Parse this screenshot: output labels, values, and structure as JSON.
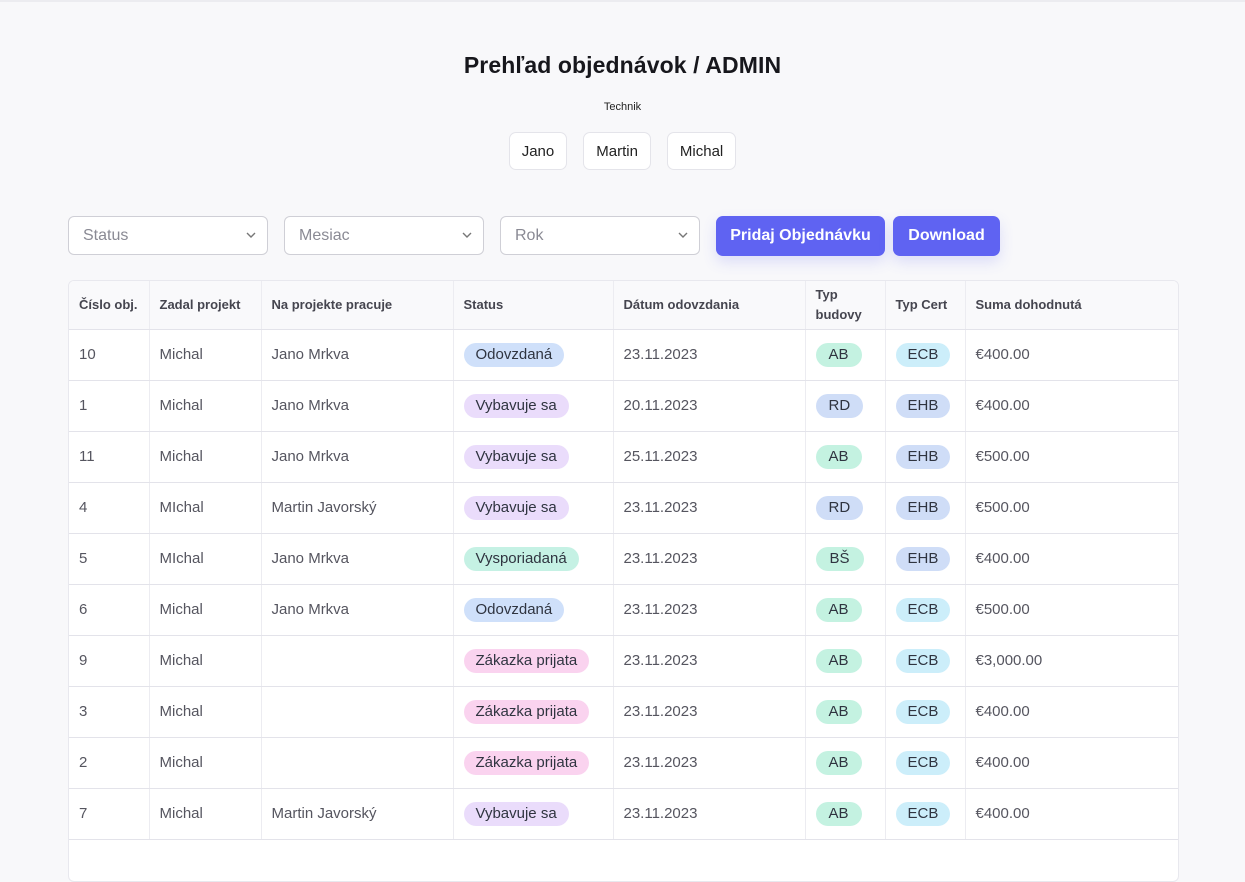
{
  "page": {
    "title": "Prehľad objednávok / ADMIN",
    "technician_label": "Technik"
  },
  "technicians": [
    {
      "label": "Jano"
    },
    {
      "label": "Martin"
    },
    {
      "label": "Michal"
    }
  ],
  "filters": {
    "status": {
      "placeholder": "Status"
    },
    "month": {
      "placeholder": "Mesiac"
    },
    "year": {
      "placeholder": "Rok"
    }
  },
  "actions": {
    "add_order": "Pridaj Objednávku",
    "download": "Download"
  },
  "colors": {
    "accent": "#5f63f2",
    "pill_odovzdana": "#cfe0fa",
    "pill_vybavuje": "#eadcfb",
    "pill_vysporiadana": "#c5f1e4",
    "pill_zakazka": "#fad3ef",
    "pill_ab": "#c4f2e1",
    "pill_rd": "#cfddf7",
    "pill_ecb": "#cceefa"
  },
  "table": {
    "headers": {
      "order_no": "Číslo obj.",
      "entered_by": "Zadal projekt",
      "worker": "Na projekte pracuje",
      "status": "Status",
      "delivery_date": "Dátum odovzdania",
      "building_type": "Typ budovy",
      "cert_type": "Typ Cert",
      "amount": "Suma dohodnutá"
    },
    "rows": [
      {
        "order_no": "10",
        "entered_by": "Michal",
        "worker": "Jano Mrkva",
        "status": "Odovzdaná",
        "status_class": "odovzdana",
        "delivery_date": "23.11.2023",
        "building_type": "AB",
        "building_class": "ab",
        "cert_type": "ECB",
        "cert_class": "ecb",
        "amount": "€400.00"
      },
      {
        "order_no": "1",
        "entered_by": "Michal",
        "worker": "Jano Mrkva",
        "status": "Vybavuje sa",
        "status_class": "vybavuje",
        "delivery_date": "20.11.2023",
        "building_type": "RD",
        "building_class": "rd",
        "cert_type": "EHB",
        "cert_class": "ehb",
        "amount": "€400.00"
      },
      {
        "order_no": "11",
        "entered_by": "Michal",
        "worker": "Jano Mrkva",
        "status": "Vybavuje sa",
        "status_class": "vybavuje",
        "delivery_date": "25.11.2023",
        "building_type": "AB",
        "building_class": "ab",
        "cert_type": "EHB",
        "cert_class": "ehb",
        "amount": "€500.00"
      },
      {
        "order_no": "4",
        "entered_by": "MIchal",
        "worker": "Martin Javorský",
        "status": "Vybavuje sa",
        "status_class": "vybavuje",
        "delivery_date": "23.11.2023",
        "building_type": "RD",
        "building_class": "rd",
        "cert_type": "EHB",
        "cert_class": "ehb",
        "amount": "€500.00"
      },
      {
        "order_no": "5",
        "entered_by": "MIchal",
        "worker": "Jano Mrkva",
        "status": "Vysporiadaná",
        "status_class": "vysporiadana",
        "delivery_date": "23.11.2023",
        "building_type": "BŠ",
        "building_class": "bs",
        "cert_type": "EHB",
        "cert_class": "ehb",
        "amount": "€400.00"
      },
      {
        "order_no": "6",
        "entered_by": "Michal",
        "worker": "Jano Mrkva",
        "status": "Odovzdaná",
        "status_class": "odovzdana",
        "delivery_date": "23.11.2023",
        "building_type": "AB",
        "building_class": "ab",
        "cert_type": "ECB",
        "cert_class": "ecb",
        "amount": "€500.00"
      },
      {
        "order_no": "9",
        "entered_by": "Michal",
        "worker": "",
        "status": "Zákazka prijata",
        "status_class": "zakazka",
        "delivery_date": "23.11.2023",
        "building_type": "AB",
        "building_class": "ab",
        "cert_type": "ECB",
        "cert_class": "ecb",
        "amount": "€3,000.00"
      },
      {
        "order_no": "3",
        "entered_by": "Michal",
        "worker": "",
        "status": "Zákazka prijata",
        "status_class": "zakazka",
        "delivery_date": "23.11.2023",
        "building_type": "AB",
        "building_class": "ab",
        "cert_type": "ECB",
        "cert_class": "ecb",
        "amount": "€400.00"
      },
      {
        "order_no": "2",
        "entered_by": "Michal",
        "worker": "",
        "status": "Zákazka prijata",
        "status_class": "zakazka",
        "delivery_date": "23.11.2023",
        "building_type": "AB",
        "building_class": "ab",
        "cert_type": "ECB",
        "cert_class": "ecb",
        "amount": "€400.00"
      },
      {
        "order_no": "7",
        "entered_by": "Michal",
        "worker": "Martin Javorský",
        "status": "Vybavuje sa",
        "status_class": "vybavuje",
        "delivery_date": "23.11.2023",
        "building_type": "AB",
        "building_class": "ab",
        "cert_type": "ECB",
        "cert_class": "ecb",
        "amount": "€400.00"
      }
    ]
  }
}
